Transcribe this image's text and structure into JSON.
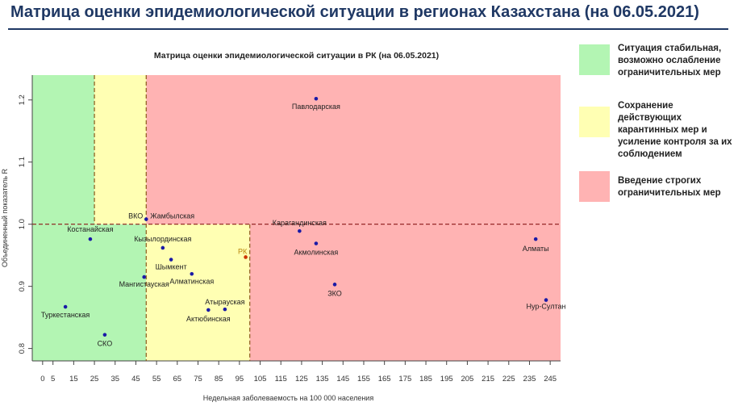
{
  "page_title": "Матрица оценки эпидемиологической ситуации в регионах Казахстана (на 06.05.2021)",
  "legend": [
    {
      "color": "#b3f5b3",
      "label": "Ситуация стабильная, возможно ослабление ограничительных мер"
    },
    {
      "color": "#ffffb3",
      "label": "Сохранение действующих карантинных мер и усиление контроля за их соблюдением"
    },
    {
      "color": "#ffb3b3",
      "label": "Введение строгих ограничительных мер"
    }
  ],
  "colors": {
    "green_zone": "#b3f5b3",
    "yellow_zone": "#ffffb3",
    "red_zone": "#ffb3b3",
    "points": "#1a1aa6",
    "rk_point": "#cc3300",
    "rk_label": "#b8860b"
  },
  "chart_data": {
    "type": "scatter",
    "title": "Матрица оценки эпидемиологической ситуации в РК (на 06.05.2021)",
    "xlabel": "Недельная заболеваемость на 100 000 населения",
    "ylabel": "Объединенный показатель R",
    "xlim": [
      -5,
      250
    ],
    "ylim": [
      0.78,
      1.24
    ],
    "xticks": [
      0,
      5,
      15,
      25,
      35,
      45,
      55,
      65,
      75,
      85,
      95,
      105,
      115,
      125,
      135,
      145,
      155,
      165,
      175,
      185,
      195,
      205,
      215,
      225,
      235,
      245
    ],
    "xtick_labels": [
      "0",
      "5",
      "15",
      "25",
      "35",
      "45",
      "55",
      "65",
      "75",
      "85",
      "95",
      "105",
      "115",
      "125",
      "135",
      "145",
      "155",
      "165",
      "175",
      "185",
      "195",
      "205",
      "215",
      "225",
      "235",
      "245"
    ],
    "yticks": [
      0.8,
      0.9,
      1.0,
      1.1,
      1.2
    ],
    "ytick_labels": [
      "0.8",
      "0.9",
      "1.0",
      "1.1",
      "1.2"
    ],
    "zones": [
      {
        "color": "green",
        "x": [
          -5,
          50
        ],
        "y": [
          0.78,
          1.0
        ]
      },
      {
        "color": "green",
        "x": [
          -5,
          25
        ],
        "y": [
          1.0,
          1.24
        ]
      },
      {
        "color": "yellow",
        "x": [
          25,
          50
        ],
        "y": [
          1.0,
          1.24
        ]
      },
      {
        "color": "yellow",
        "x": [
          50,
          100
        ],
        "y": [
          0.78,
          1.0
        ]
      },
      {
        "color": "red",
        "x": [
          50,
          250
        ],
        "y": [
          1.0,
          1.24
        ]
      },
      {
        "color": "red",
        "x": [
          100,
          250
        ],
        "y": [
          0.78,
          1.0
        ]
      }
    ],
    "reference_lines": {
      "horizontal_y": 1.0,
      "vertical_x": [
        25,
        50,
        100
      ]
    },
    "grid": false,
    "points": [
      {
        "label": "Павлодарская",
        "x": 132,
        "y": 1.202
      },
      {
        "label": "ВКО",
        "x": 50,
        "y": 1.008
      },
      {
        "label": "Жамбылская",
        "x": 50,
        "y": 1.008
      },
      {
        "label": "Карагандинская",
        "x": 124,
        "y": 0.989
      },
      {
        "label": "Костанайская",
        "x": 23,
        "y": 0.976
      },
      {
        "label": "Акмолинская",
        "x": 132,
        "y": 0.969
      },
      {
        "label": "Алматы",
        "x": 238,
        "y": 0.976
      },
      {
        "label": "Кызылординская",
        "x": 58,
        "y": 0.962
      },
      {
        "label": "РК",
        "x": 98,
        "y": 0.947
      },
      {
        "label": "Шымкент",
        "x": 62,
        "y": 0.943
      },
      {
        "label": "Алматинская",
        "x": 72,
        "y": 0.92
      },
      {
        "label": "Мангистауская",
        "x": 49,
        "y": 0.915
      },
      {
        "label": "ЗКО",
        "x": 141,
        "y": 0.903
      },
      {
        "label": "Нур-Султан",
        "x": 243,
        "y": 0.878
      },
      {
        "label": "Туркестанская",
        "x": 11,
        "y": 0.867
      },
      {
        "label": "Атырауская",
        "x": 88,
        "y": 0.863
      },
      {
        "label": "Актюбинская",
        "x": 80,
        "y": 0.862
      },
      {
        "label": "СКО",
        "x": 30,
        "y": 0.822
      }
    ]
  }
}
